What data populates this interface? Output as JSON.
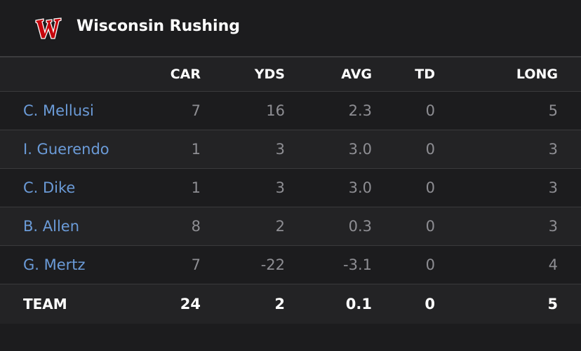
{
  "header": {
    "title": "Wisconsin Rushing",
    "logo_color": "#c5050c",
    "logo_icon": "wisconsin-w-logo"
  },
  "columns": [
    "CAR",
    "YDS",
    "AVG",
    "TD",
    "LONG"
  ],
  "players": [
    {
      "name": "C. Mellusi",
      "car": "7",
      "yds": "16",
      "avg": "2.3",
      "td": "0",
      "long": "5"
    },
    {
      "name": "I. Guerendo",
      "car": "1",
      "yds": "3",
      "avg": "3.0",
      "td": "0",
      "long": "3"
    },
    {
      "name": "C. Dike",
      "car": "1",
      "yds": "3",
      "avg": "3.0",
      "td": "0",
      "long": "3"
    },
    {
      "name": "B. Allen",
      "car": "8",
      "yds": "2",
      "avg": "0.3",
      "td": "0",
      "long": "3"
    },
    {
      "name": "G. Mertz",
      "car": "7",
      "yds": "-22",
      "avg": "-3.1",
      "td": "0",
      "long": "4"
    }
  ],
  "team": {
    "name": "TEAM",
    "car": "24",
    "yds": "2",
    "avg": "0.1",
    "td": "0",
    "long": "5"
  },
  "colors": {
    "background": "#1c1c1e",
    "player_link": "#6b9bd8",
    "stat_text": "#8e8e93",
    "header_text": "#ffffff"
  }
}
